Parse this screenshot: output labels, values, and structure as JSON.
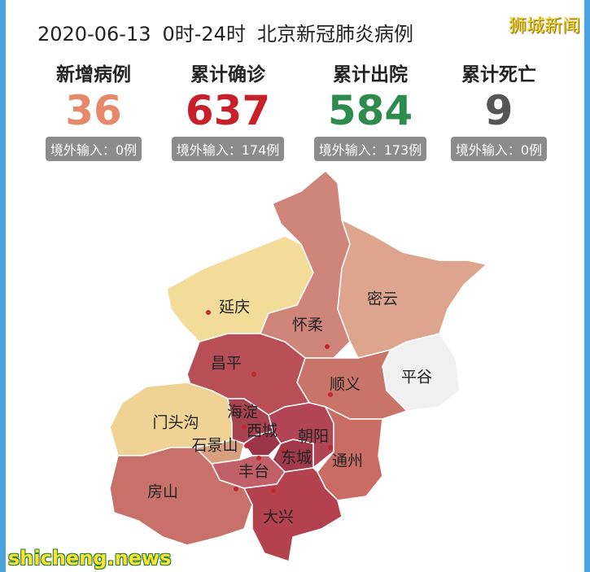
{
  "header": {
    "date": "2020-06-13",
    "time": "0时-24时",
    "title": "北京新冠肺炎病例"
  },
  "watermark_top": "狮城新闻",
  "watermark_bottom": "shicheng.news",
  "stats": [
    {
      "label": "新增病例",
      "value": 36,
      "note": "境外输入：0例",
      "color": "#e6896b"
    },
    {
      "label": "累计确诊",
      "value": 637,
      "note": "境外输入：174例",
      "color": "#c8202a"
    },
    {
      "label": "累计出院",
      "value": 584,
      "note": "境外输入：173例",
      "color": "#2e8b4e"
    },
    {
      "label": "累计死亡",
      "value": 9,
      "note": "境外输入：0例",
      "color": "#555555"
    }
  ],
  "districts": [
    "延庆",
    "怀柔",
    "密云",
    "昌平",
    "顺义",
    "平谷",
    "门头沟",
    "海淀",
    "西城",
    "朝阳",
    "石景山",
    "东城",
    "通州",
    "丰台",
    "房山",
    "大兴"
  ]
}
